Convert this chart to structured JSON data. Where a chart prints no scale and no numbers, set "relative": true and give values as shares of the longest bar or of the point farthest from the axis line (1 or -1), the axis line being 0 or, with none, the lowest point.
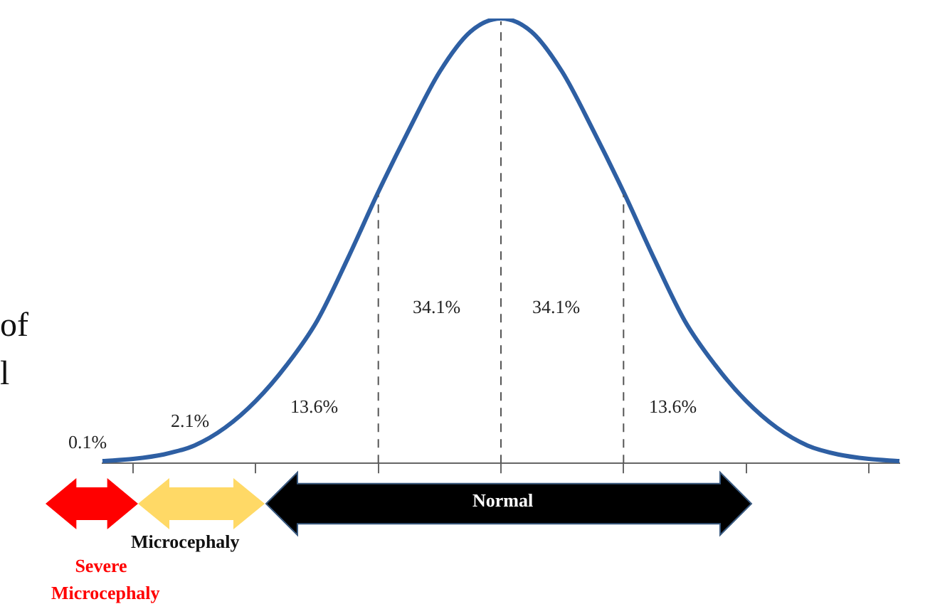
{
  "chart_data": {
    "type": "line",
    "relative": true,
    "grid": false,
    "legend": false,
    "marker": "none",
    "line_style": "solid",
    "categories": [
      null,
      null,
      null,
      null,
      null,
      null,
      null,
      null,
      null,
      null,
      null,
      null,
      null,
      null,
      null,
      null,
      null,
      null,
      null,
      null,
      null,
      null,
      null,
      null,
      null,
      null,
      null
    ],
    "series": [
      {
        "color": "#2e5fa3",
        "values": [
          0.005,
          0.01,
          0.02,
          0.04,
          0.08,
          0.14,
          0.22,
          0.32,
          0.46,
          0.61,
          0.75,
          0.88,
          0.97,
          1,
          0.97,
          0.88,
          0.75,
          0.61,
          0.46,
          0.32,
          0.22,
          0.14,
          0.08,
          0.04,
          0.02,
          0.01,
          0.005
        ]
      }
    ],
    "annotations": [
      "0.1%",
      "2.1%",
      "13.6%",
      "34.1%",
      "34.1%",
      "13.6%",
      "Normal",
      "Microcephaly",
      "Severe Microcephaly",
      "of",
      "l"
    ]
  }
}
